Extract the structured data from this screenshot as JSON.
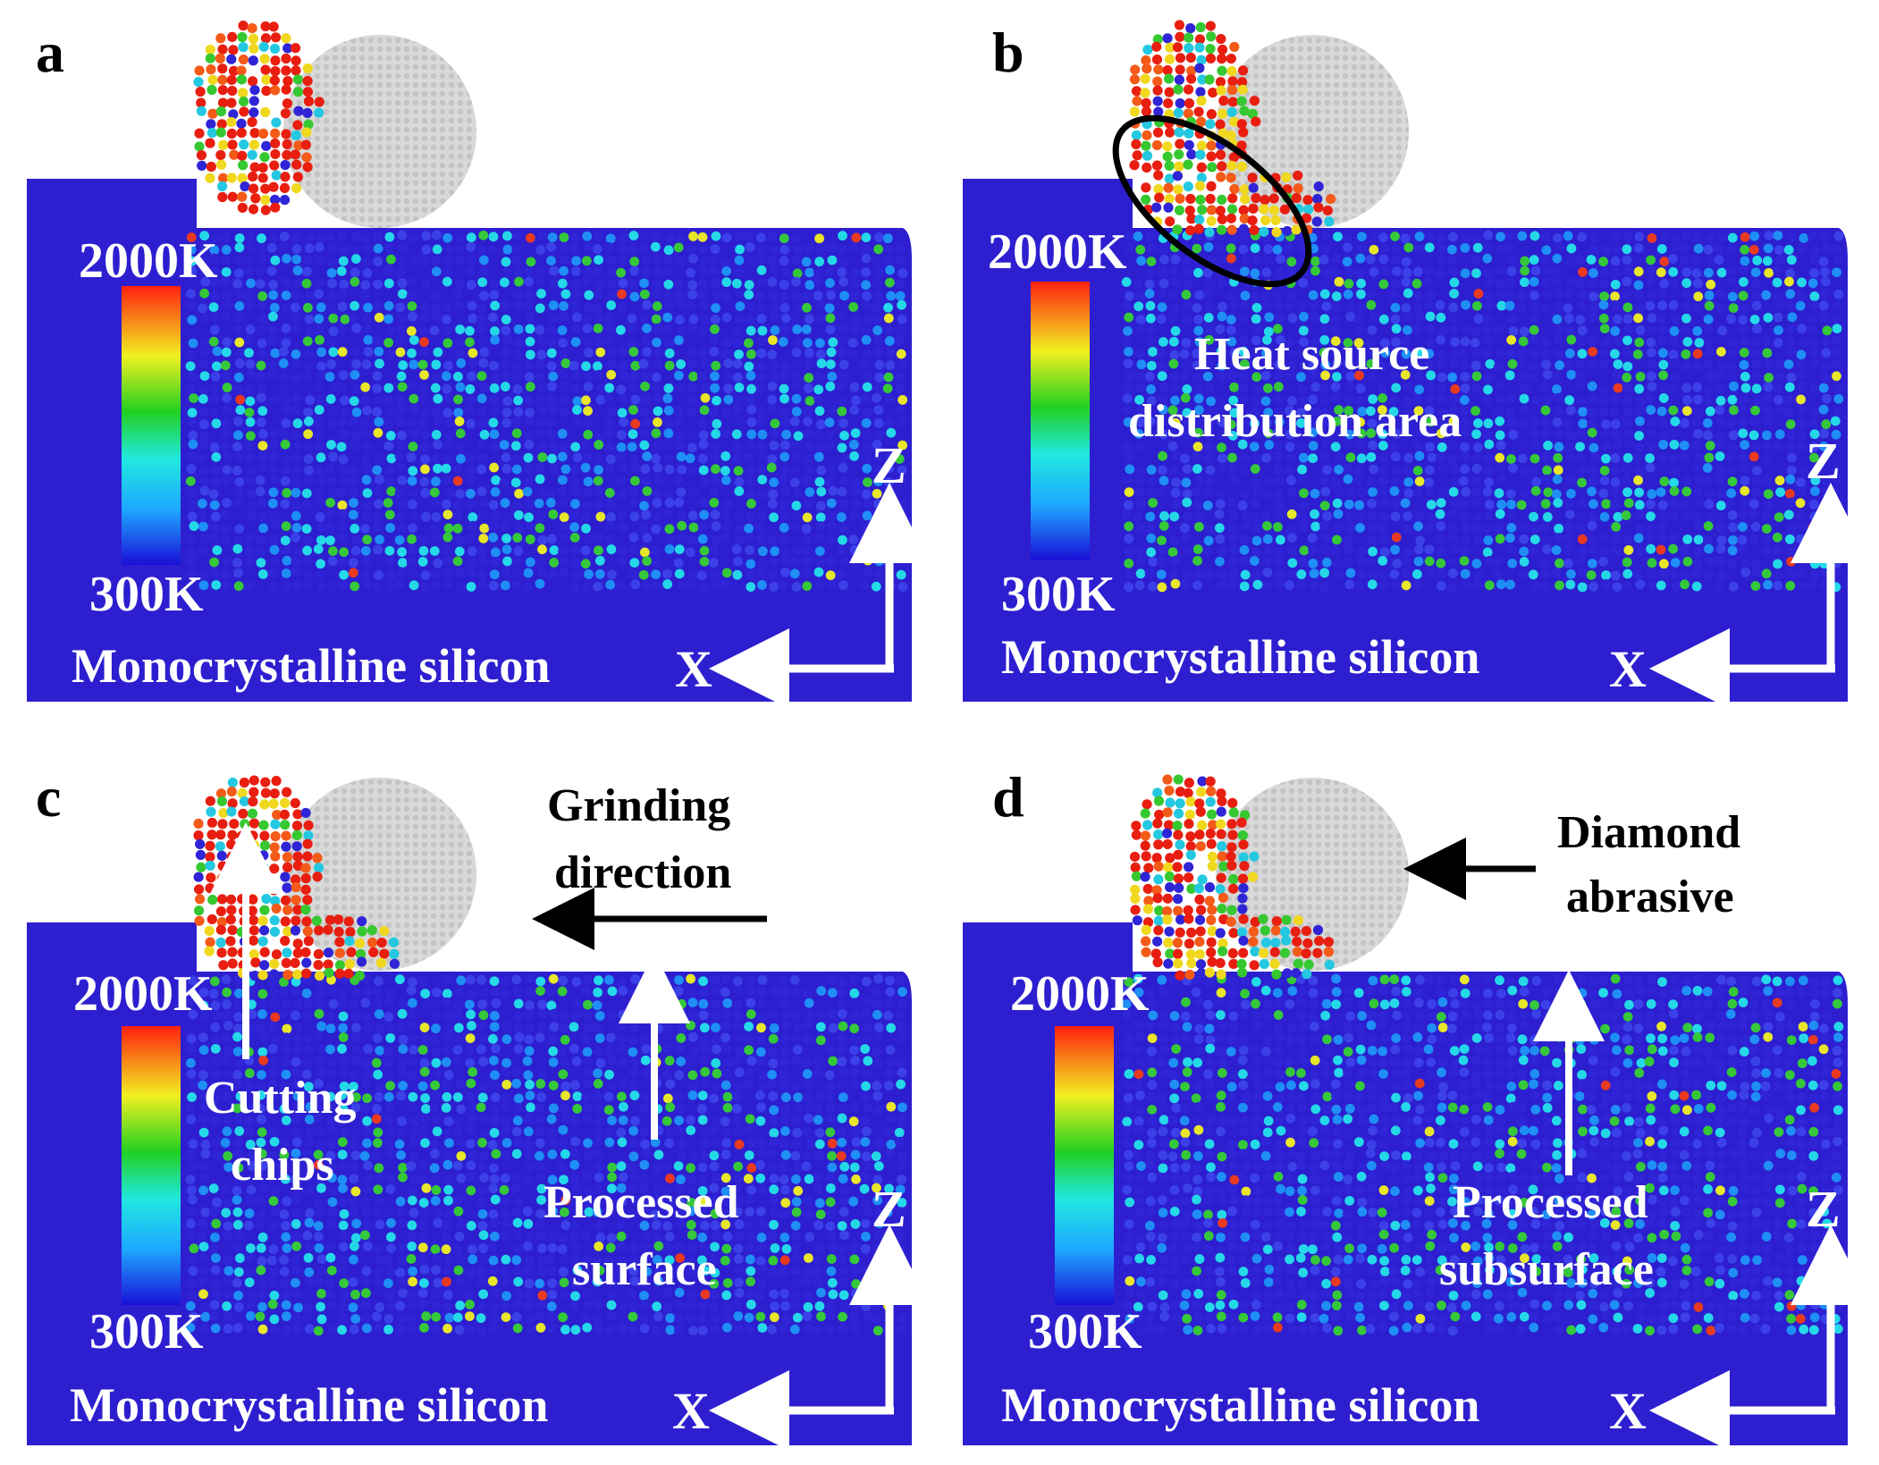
{
  "colors": {
    "substrate": "#2d1fd0",
    "substrate_deep": "#2a1cc6",
    "abrasive": "#d8d8d8",
    "text_light": "#ffffff",
    "text_dark": "#000000"
  },
  "scale": {
    "max_label": "2000K",
    "min_label": "300K"
  },
  "material_label": "Monocrystalline silicon",
  "axes": {
    "x": "X",
    "z": "Z"
  },
  "panels": [
    {
      "letter": "a",
      "annotations": {}
    },
    {
      "letter": "b",
      "annotations": {
        "heat_source_line1": "Heat source",
        "heat_source_line2": "distribution area"
      }
    },
    {
      "letter": "c",
      "annotations": {
        "grinding_line1": "Grinding",
        "grinding_line2": "direction",
        "chips_line1": "Cutting",
        "chips_line2": "chips",
        "surface_line1": "Processed",
        "surface_line2": "surface"
      }
    },
    {
      "letter": "d",
      "annotations": {
        "abrasive_line1": "Diamond",
        "abrasive_line2": "abrasive",
        "subsurface_line1": "Processed",
        "subsurface_line2": "subsurface"
      }
    }
  ]
}
